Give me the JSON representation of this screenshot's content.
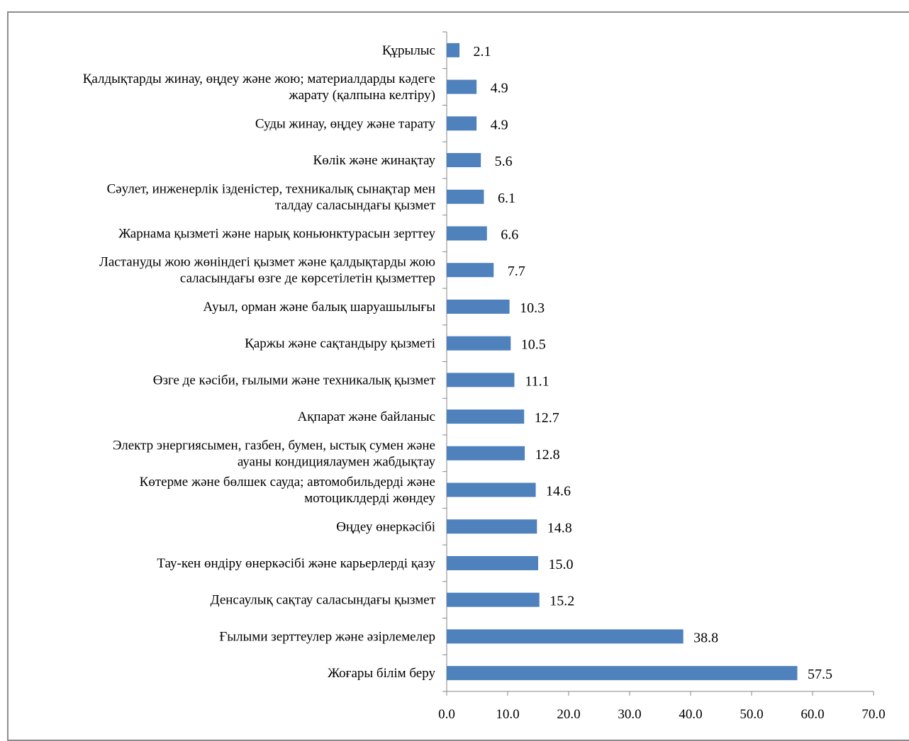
{
  "chart_data": {
    "type": "bar",
    "orientation": "horizontal",
    "categories": [
      [
        "Құрылыс"
      ],
      [
        "Қалдықтарды жинау, өңдеу және жою; материалдарды кәдеге",
        "жарату (қалпына келтіру)"
      ],
      [
        "Суды жинау, өңдеу және тарату"
      ],
      [
        "Көлік және жинақтау"
      ],
      [
        "Сәулет, инженерлік ізденістер, техникалық сынақтар мен",
        "талдау саласындағы қызмет"
      ],
      [
        "Жарнама қызметі және нарық коньюнктурасын зерттеу"
      ],
      [
        "Ластануды жою жөніндегі қызмет және қалдықтарды жою",
        "саласындағы өзге де көрсетілетін қызметтер"
      ],
      [
        "Ауыл, орман және балық шаруашылығы"
      ],
      [
        "Қаржы және сақтандыру қызметі"
      ],
      [
        "Өзге де кәсіби, ғылыми және техникалық қызмет"
      ],
      [
        "Ақпарат және байланыс"
      ],
      [
        "Электр энергиясымен, газбен, бумен, ыстық сумен және",
        "ауаны кондициялаумен жабдықтау"
      ],
      [
        "Көтерме және бөлшек сауда; автомобильдерді және",
        "мотоциклдерді жөндеу"
      ],
      [
        "Өңдеу өнеркәсібі"
      ],
      [
        "Тау-кен өндіру өнеркәсібі және карьерлерді қазу"
      ],
      [
        "Денсаулық сақтау саласындағы қызмет"
      ],
      [
        "Ғылыми зерттеулер және әзірлемелер"
      ],
      [
        "Жоғары білім беру"
      ]
    ],
    "values": [
      2.1,
      4.9,
      4.9,
      5.6,
      6.1,
      6.6,
      7.7,
      10.3,
      10.5,
      11.1,
      12.7,
      12.8,
      14.6,
      14.8,
      15.0,
      15.2,
      38.8,
      57.5
    ],
    "value_labels": [
      "2.1",
      "4.9",
      "4.9",
      "5.6",
      "6.1",
      "6.6",
      "7.7",
      "10.3",
      "10.5",
      "11.1",
      "12.7",
      "12.8",
      "14.6",
      "14.8",
      "15.0",
      "15.2",
      "38.8",
      "57.5"
    ],
    "x_ticks": [
      "0.0",
      "10.0",
      "20.0",
      "30.0",
      "40.0",
      "50.0",
      "60.0",
      "70.0"
    ],
    "xlim": [
      0,
      70
    ],
    "bar_color": "#4f81bd",
    "axis_color": "#868686",
    "grid": false,
    "title": "",
    "xlabel": "",
    "ylabel": ""
  }
}
